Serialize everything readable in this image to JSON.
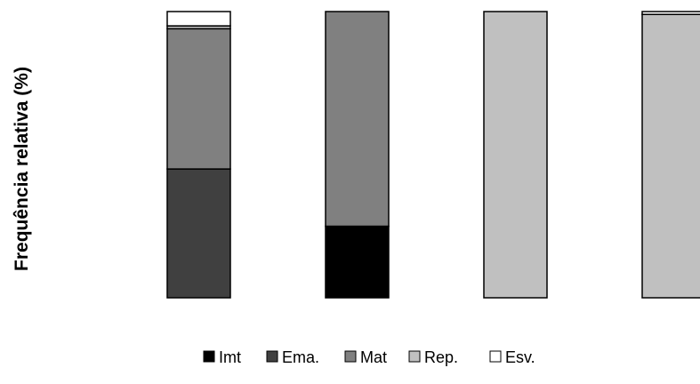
{
  "chart_data": {
    "type": "bar",
    "stacked": true,
    "categories": [
      "",
      "",
      "",
      ""
    ],
    "ylabel": "Frequência relativa (%)",
    "xlabel": "",
    "ylim": [
      0,
      100
    ],
    "grid": false,
    "legend_position": "bottom",
    "series": [
      {
        "name": "Imt",
        "color": "#000000",
        "values": [
          0,
          25,
          0,
          0
        ]
      },
      {
        "name": "Ema.",
        "color": "#404040",
        "values": [
          45,
          0,
          0,
          0
        ]
      },
      {
        "name": "Mat",
        "color": "#808080",
        "values": [
          49,
          75,
          0,
          0
        ]
      },
      {
        "name": "Rep.",
        "color": "#c0c0c0",
        "values": [
          1,
          0,
          100,
          99
        ]
      },
      {
        "name": "Esv.",
        "color": "#ffffff",
        "values": [
          5,
          0,
          0,
          1
        ]
      }
    ]
  }
}
